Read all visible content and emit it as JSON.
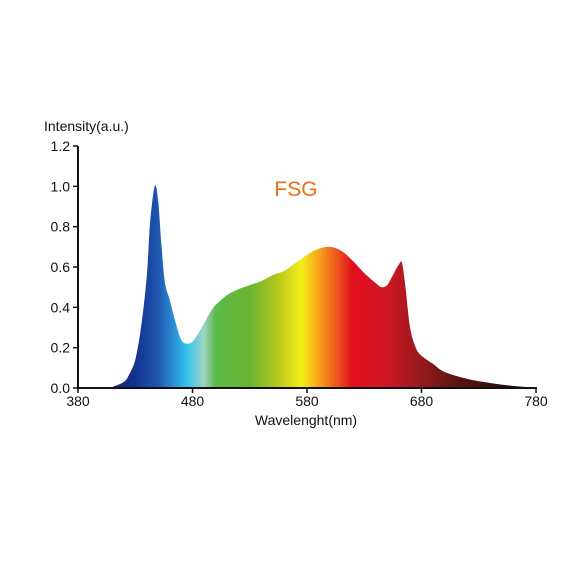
{
  "chart_data": {
    "type": "area",
    "title": "",
    "annotation": "FSG",
    "xlabel": "Wavelenght(nm)",
    "ylabel": "Intensity(a.u.)",
    "xlim": [
      380,
      780
    ],
    "ylim": [
      0,
      1.2
    ],
    "x_ticks": [
      "380",
      "480",
      "580",
      "680",
      "780"
    ],
    "y_ticks": [
      "0.0",
      "0.2",
      "0.4",
      "0.6",
      "0.8",
      "1.0",
      "1.2"
    ],
    "grid": false,
    "legend": "none",
    "series": [
      {
        "x": [
          410,
          420,
          425,
          430,
          435,
          440,
          443,
          447,
          450,
          453,
          456,
          460,
          465,
          470,
          475,
          480,
          485,
          490,
          495,
          500,
          510,
          520,
          530,
          540,
          550,
          560,
          570,
          580,
          590,
          600,
          610,
          620,
          630,
          640,
          645,
          650,
          655,
          660,
          663,
          666,
          670,
          675,
          680,
          690,
          700,
          720,
          740,
          760,
          780
        ],
        "y": [
          0.005,
          0.03,
          0.07,
          0.14,
          0.3,
          0.55,
          0.82,
          1.0,
          0.93,
          0.7,
          0.52,
          0.44,
          0.33,
          0.24,
          0.22,
          0.23,
          0.27,
          0.32,
          0.37,
          0.41,
          0.46,
          0.49,
          0.51,
          0.53,
          0.56,
          0.58,
          0.62,
          0.66,
          0.69,
          0.7,
          0.68,
          0.63,
          0.57,
          0.52,
          0.5,
          0.51,
          0.56,
          0.61,
          0.62,
          0.5,
          0.3,
          0.2,
          0.16,
          0.12,
          0.08,
          0.045,
          0.025,
          0.01,
          0.002
        ]
      }
    ],
    "fill_gradient": [
      {
        "nm": 400,
        "color": "#1a1a6a"
      },
      {
        "nm": 430,
        "color": "#13338f"
      },
      {
        "nm": 450,
        "color": "#1e56b0"
      },
      {
        "nm": 468,
        "color": "#2fa2e0"
      },
      {
        "nm": 475,
        "color": "#34c3ee"
      },
      {
        "nm": 490,
        "color": "#9ed5c2"
      },
      {
        "nm": 500,
        "color": "#5cba4a"
      },
      {
        "nm": 530,
        "color": "#6cb432"
      },
      {
        "nm": 555,
        "color": "#b8c81c"
      },
      {
        "nm": 575,
        "color": "#f5ef1a"
      },
      {
        "nm": 590,
        "color": "#f6a61a"
      },
      {
        "nm": 605,
        "color": "#ef5a1c"
      },
      {
        "nm": 620,
        "color": "#e10f1d"
      },
      {
        "nm": 650,
        "color": "#cf1425"
      },
      {
        "nm": 675,
        "color": "#9e1b1f"
      },
      {
        "nm": 710,
        "color": "#5e1412"
      },
      {
        "nm": 760,
        "color": "#1e0806"
      }
    ],
    "colors": {
      "annotation": "#ef6b14",
      "axis": "#111111"
    }
  }
}
